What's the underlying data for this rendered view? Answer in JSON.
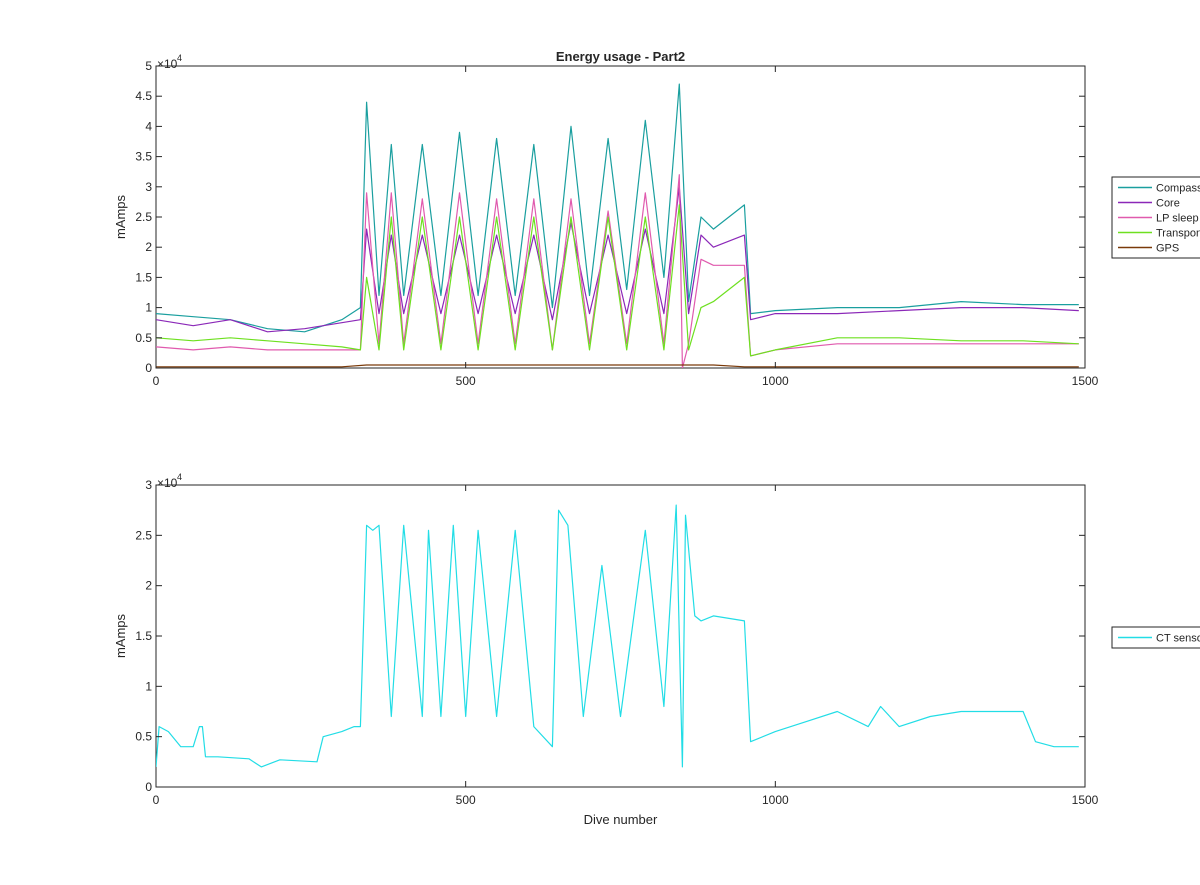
{
  "chart_data": [
    {
      "type": "line",
      "title": "Energy usage - Part2",
      "xlabel": "",
      "ylabel": "mAmps",
      "xlim": [
        0,
        1500
      ],
      "ylim": [
        0,
        50000
      ],
      "exponent_label": "×10",
      "exponent_power": "4",
      "xticks": [
        0,
        500,
        1000,
        1500
      ],
      "xtick_labels": [
        "0",
        "500",
        "1000",
        "1500"
      ],
      "yticks": [
        0,
        5000,
        10000,
        15000,
        20000,
        25000,
        30000,
        35000,
        40000,
        45000,
        50000
      ],
      "ytick_labels": [
        "0",
        "0.5",
        "1",
        "1.5",
        "2",
        "2.5",
        "3",
        "3.5",
        "4",
        "4.5",
        "5"
      ],
      "grid": false,
      "legend_placement": "outside-right",
      "series": [
        {
          "name": "Compass",
          "color": "#1a9f9f",
          "x": [
            0,
            60,
            120,
            180,
            240,
            300,
            330,
            340,
            360,
            380,
            400,
            430,
            460,
            490,
            520,
            550,
            580,
            610,
            640,
            670,
            700,
            730,
            760,
            790,
            820,
            845,
            860,
            880,
            900,
            950,
            960,
            1000,
            1100,
            1200,
            1300,
            1400,
            1490
          ],
          "y": [
            9000,
            8500,
            8000,
            6500,
            6000,
            8000,
            10000,
            44000,
            12000,
            37000,
            12000,
            37000,
            12000,
            39000,
            12000,
            38000,
            12000,
            37000,
            10000,
            40000,
            12000,
            38000,
            13000,
            41000,
            15000,
            47000,
            11000,
            25000,
            23000,
            27000,
            9000,
            9500,
            10000,
            10000,
            11000,
            10500,
            10500
          ]
        },
        {
          "name": "Core",
          "color": "#8b28b8",
          "x": [
            0,
            60,
            120,
            180,
            240,
            300,
            330,
            340,
            360,
            380,
            400,
            430,
            460,
            490,
            520,
            550,
            580,
            610,
            640,
            670,
            700,
            730,
            760,
            790,
            820,
            845,
            860,
            880,
            900,
            950,
            960,
            1000,
            1100,
            1200,
            1300,
            1400,
            1490
          ],
          "y": [
            8000,
            7000,
            8000,
            6000,
            6500,
            7500,
            8000,
            23000,
            9000,
            22000,
            9000,
            22000,
            9000,
            22000,
            9000,
            22000,
            9000,
            22000,
            8000,
            24000,
            9000,
            22000,
            9000,
            23000,
            9000,
            30000,
            9000,
            22000,
            20000,
            22000,
            8000,
            9000,
            9000,
            9500,
            10000,
            10000,
            9500
          ]
        },
        {
          "name": "LP sleep",
          "color": "#e05aae",
          "x": [
            0,
            60,
            120,
            180,
            240,
            300,
            330,
            340,
            360,
            380,
            400,
            430,
            460,
            490,
            520,
            550,
            580,
            610,
            640,
            670,
            700,
            730,
            760,
            790,
            820,
            845,
            850,
            860,
            880,
            900,
            950,
            960,
            1000,
            1100,
            1200,
            1300,
            1400,
            1490
          ],
          "y": [
            3500,
            3000,
            3500,
            3000,
            3000,
            3000,
            3000,
            29000,
            4000,
            29000,
            4000,
            28000,
            4000,
            29000,
            4000,
            28000,
            4000,
            28000,
            3000,
            28000,
            4000,
            26000,
            4000,
            29000,
            4000,
            32000,
            0,
            4000,
            18000,
            17000,
            17000,
            2000,
            3000,
            4000,
            4000,
            4000,
            4000,
            4000
          ]
        },
        {
          "name": "Transponder",
          "color": "#6ee020",
          "x": [
            0,
            60,
            120,
            180,
            240,
            300,
            330,
            340,
            360,
            380,
            400,
            430,
            460,
            490,
            520,
            550,
            580,
            610,
            640,
            670,
            700,
            730,
            760,
            790,
            820,
            845,
            860,
            880,
            900,
            950,
            960,
            1000,
            1100,
            1200,
            1300,
            1400,
            1490
          ],
          "y": [
            5000,
            4500,
            5000,
            4500,
            4000,
            3500,
            3000,
            15000,
            3000,
            25000,
            3000,
            25000,
            3000,
            25000,
            3000,
            25000,
            3000,
            25000,
            3000,
            25000,
            3000,
            25000,
            3000,
            25000,
            3000,
            27000,
            3000,
            10000,
            11000,
            15000,
            2000,
            3000,
            5000,
            5000,
            4500,
            4500,
            4000
          ]
        },
        {
          "name": "GPS",
          "color": "#7a3a0a",
          "x": [
            0,
            300,
            340,
            500,
            700,
            900,
            950,
            1000,
            1490
          ],
          "y": [
            200,
            200,
            500,
            500,
            500,
            500,
            200,
            200,
            200
          ]
        }
      ]
    },
    {
      "type": "line",
      "title": "",
      "xlabel": "Dive number",
      "ylabel": "mAmps",
      "xlim": [
        0,
        1500
      ],
      "ylim": [
        0,
        30000
      ],
      "exponent_label": "×10",
      "exponent_power": "4",
      "xticks": [
        0,
        500,
        1000,
        1500
      ],
      "xtick_labels": [
        "0",
        "500",
        "1000",
        "1500"
      ],
      "yticks": [
        0,
        5000,
        10000,
        15000,
        20000,
        25000,
        30000
      ],
      "ytick_labels": [
        "0",
        "0.5",
        "1",
        "1.5",
        "2",
        "2.5",
        "3"
      ],
      "grid": false,
      "legend_placement": "outside-right",
      "series": [
        {
          "name": "CT sensor",
          "color": "#22dde6",
          "x": [
            0,
            5,
            20,
            40,
            60,
            70,
            75,
            80,
            100,
            150,
            170,
            200,
            260,
            270,
            300,
            320,
            330,
            340,
            350,
            360,
            380,
            400,
            430,
            440,
            460,
            480,
            500,
            520,
            550,
            580,
            610,
            640,
            650,
            665,
            690,
            720,
            750,
            790,
            820,
            840,
            850,
            855,
            870,
            880,
            900,
            950,
            960,
            1000,
            1050,
            1100,
            1150,
            1170,
            1200,
            1250,
            1300,
            1350,
            1400,
            1420,
            1450,
            1490
          ],
          "y": [
            2000,
            6000,
            5500,
            4000,
            4000,
            6000,
            6000,
            3000,
            3000,
            2800,
            2000,
            2700,
            2500,
            5000,
            5500,
            6000,
            6000,
            26000,
            25500,
            26000,
            7000,
            26000,
            7000,
            25500,
            7000,
            26000,
            7000,
            25500,
            7000,
            25500,
            6000,
            4000,
            27500,
            26000,
            7000,
            22000,
            7000,
            25500,
            8000,
            28000,
            2000,
            27000,
            17000,
            16500,
            17000,
            16500,
            4500,
            5500,
            6500,
            7500,
            6000,
            8000,
            6000,
            7000,
            7500,
            7500,
            7500,
            4500,
            4000,
            4000
          ]
        }
      ]
    }
  ]
}
